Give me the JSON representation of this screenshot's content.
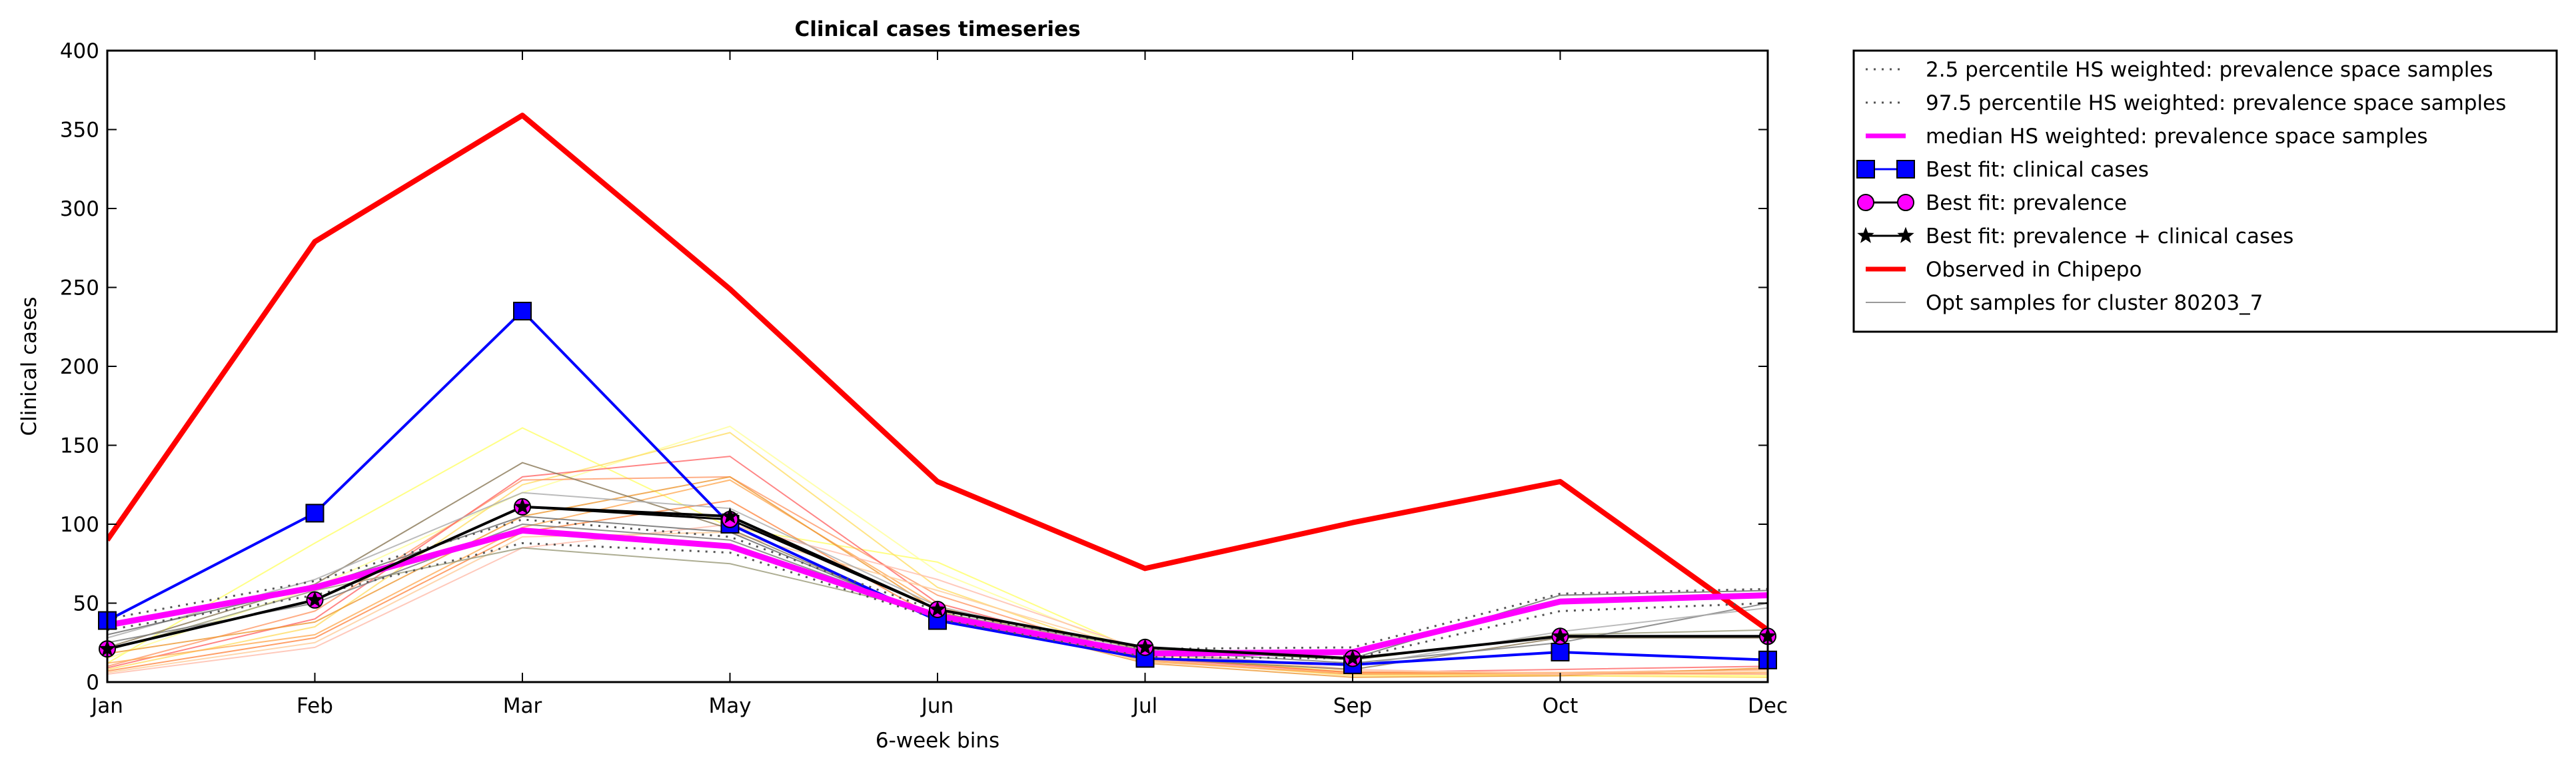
{
  "chart_data": {
    "type": "line",
    "title": "Clinical cases timeseries",
    "xlabel": "6-week bins",
    "ylabel": "Clinical cases",
    "categories": [
      "Jan",
      "Feb",
      "Mar",
      "May",
      "Jun",
      "Jul",
      "Sep",
      "Oct",
      "Dec"
    ],
    "ylim": [
      0,
      400
    ],
    "yticks": [
      0,
      50,
      100,
      150,
      200,
      250,
      300,
      350,
      400
    ],
    "grid": false,
    "legend_position": "outside-top-right",
    "legend": [
      {
        "label": "2.5 percentile HS weighted: prevalence space samples",
        "color": "#555555",
        "style": "dotted",
        "marker": "none"
      },
      {
        "label": "97.5 percentile HS weighted: prevalence space samples",
        "color": "#555555",
        "style": "dotted",
        "marker": "none"
      },
      {
        "label": "median HS weighted: prevalence space samples",
        "color": "#ff00ff",
        "style": "thick",
        "marker": "none"
      },
      {
        "label": "Best fit: clinical cases",
        "color": "#0000ff",
        "style": "solid",
        "marker": "square"
      },
      {
        "label": "Best fit: prevalence",
        "color": "#000000",
        "style": "solid",
        "marker": "circle"
      },
      {
        "label": "Best fit: prevalence + clinical cases",
        "color": "#000000",
        "style": "solid",
        "marker": "star"
      },
      {
        "label": "Observed in Chipepo",
        "color": "#ff0000",
        "style": "thick",
        "marker": "none"
      },
      {
        "label": "Opt samples for cluster 80203_7",
        "color": "#999999",
        "style": "thin",
        "marker": "none"
      }
    ],
    "series": [
      {
        "name": "Observed in Chipepo",
        "color": "#ff0000",
        "width": 8,
        "marker": "none",
        "values": [
          90,
          279,
          359,
          249,
          127,
          72,
          101,
          127,
          33
        ]
      },
      {
        "name": "Best fit: clinical cases",
        "color": "#0000ff",
        "width": 4,
        "marker": "square",
        "marker_fill": "#0000ff",
        "values": [
          39,
          107,
          235,
          100,
          39,
          15,
          11,
          19,
          14
        ]
      },
      {
        "name": "median HS weighted: prevalence space samples",
        "color": "#ff00ff",
        "width": 9,
        "marker": "none",
        "values": [
          36,
          60,
          96,
          86,
          42,
          18,
          19,
          51,
          55
        ]
      },
      {
        "name": "2.5 percentile HS weighted: prevalence space samples",
        "color": "#555555",
        "width": 3,
        "dash": "3,9",
        "marker": "none",
        "values": [
          33,
          55,
          88,
          82,
          40,
          16,
          15,
          45,
          50
        ]
      },
      {
        "name": "97.5 percentile HS weighted: prevalence space samples",
        "color": "#555555",
        "width": 3,
        "dash": "3,9",
        "marker": "none",
        "values": [
          40,
          64,
          103,
          92,
          45,
          21,
          22,
          56,
          59
        ]
      },
      {
        "name": "Best fit: prevalence",
        "color": "#000000",
        "width": 3,
        "marker": "circle",
        "marker_fill": "#ff00ff",
        "values": [
          21,
          52,
          111,
          103,
          46,
          22,
          15,
          29,
          29
        ]
      },
      {
        "name": "Best fit: prevalence + clinical cases",
        "color": "#000000",
        "width": 4,
        "marker": "star",
        "marker_fill": "#000000",
        "values": [
          21,
          52,
          111,
          105,
          46,
          22,
          15,
          29,
          29
        ]
      }
    ],
    "samples": {
      "name": "Opt samples for cluster 80203_7",
      "lines": [
        {
          "color": "#ffff66",
          "values": [
            12,
            88,
            161,
            98,
            76,
            18,
            6,
            5,
            4
          ]
        },
        {
          "color": "#ffff99",
          "values": [
            15,
            60,
            120,
            162,
            70,
            17,
            5,
            4,
            3
          ]
        },
        {
          "color": "#ffdd66",
          "values": [
            8,
            35,
            125,
            158,
            60,
            14,
            4,
            4,
            3
          ]
        },
        {
          "color": "#ff9966",
          "values": [
            10,
            45,
            128,
            130,
            55,
            14,
            5,
            6,
            8
          ]
        },
        {
          "color": "#ff6666",
          "values": [
            9,
            40,
            130,
            143,
            50,
            15,
            6,
            8,
            10
          ]
        },
        {
          "color": "#ffaa55",
          "values": [
            12,
            30,
            98,
            128,
            48,
            13,
            5,
            5,
            6
          ]
        },
        {
          "color": "#ee9933",
          "values": [
            18,
            38,
            105,
            130,
            45,
            12,
            3,
            4,
            9
          ]
        },
        {
          "color": "#ff8844",
          "values": [
            7,
            28,
            95,
            115,
            40,
            16,
            6,
            6,
            5
          ]
        },
        {
          "color": "#ffbbaa",
          "values": [
            5,
            22,
            85,
            100,
            65,
            20,
            8,
            5,
            5
          ]
        },
        {
          "color": "#ffcc99",
          "values": [
            6,
            25,
            92,
            95,
            58,
            19,
            7,
            6,
            7
          ]
        },
        {
          "color": "#887755",
          "values": [
            22,
            62,
            139,
            97,
            40,
            15,
            8,
            28,
            28
          ]
        },
        {
          "color": "#999977",
          "values": [
            20,
            58,
            85,
            75,
            44,
            21,
            14,
            30,
            33
          ]
        },
        {
          "color": "#777777",
          "values": [
            25,
            50,
            100,
            90,
            42,
            20,
            12,
            25,
            50
          ]
        },
        {
          "color": "#aaaaaa",
          "values": [
            28,
            65,
            120,
            110,
            48,
            18,
            10,
            32,
            47
          ]
        },
        {
          "color": "#666666",
          "values": [
            30,
            60,
            105,
            95,
            40,
            20,
            15,
            55,
            58
          ]
        }
      ]
    }
  }
}
